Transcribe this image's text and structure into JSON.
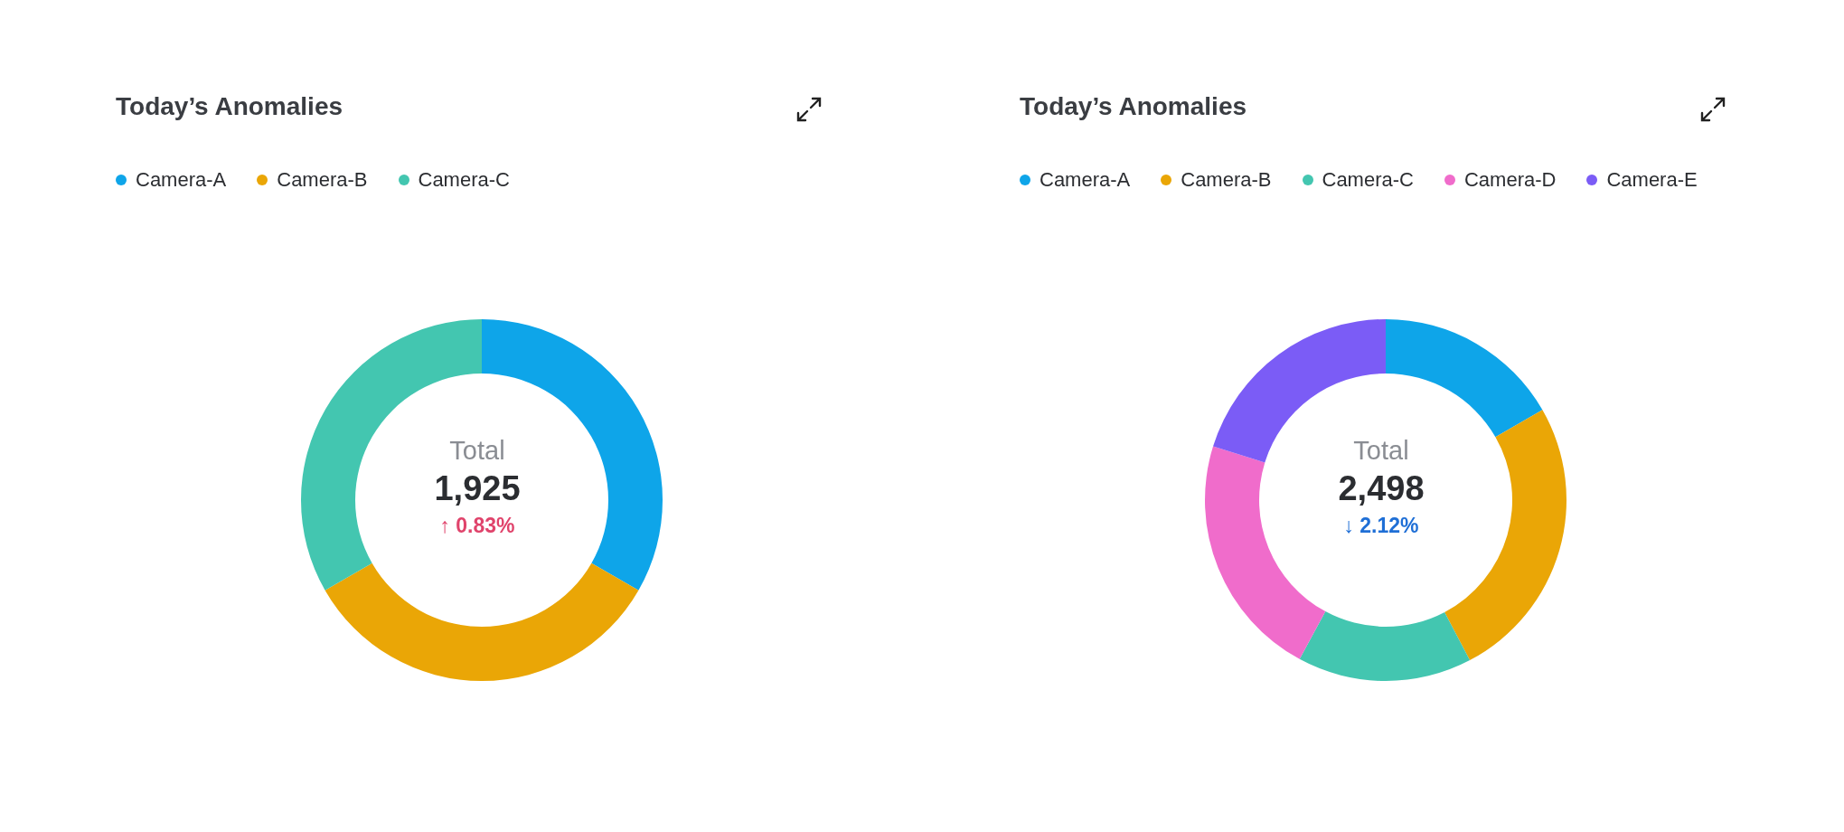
{
  "chart_data": [
    {
      "type": "donut",
      "title": "Today’s Anomalies",
      "categories": [
        "Camera-A",
        "Camera-B",
        "Camera-C"
      ],
      "values": [
        33.3,
        33.4,
        33.3
      ],
      "colors": [
        "#0ea5e9",
        "#eaa606",
        "#43c6b0"
      ],
      "legend": "top left",
      "annotations": [
        "Total",
        "1,925",
        "↑ 0.83%"
      ]
    },
    {
      "type": "donut",
      "title": "Today’s Anomalies",
      "categories": [
        "Camera-A",
        "Camera-B",
        "Camera-C",
        "Camera-D",
        "Camera-E"
      ],
      "values": [
        16.7,
        25.6,
        15.6,
        21.9,
        20.2
      ],
      "colors": [
        "#0ea5e9",
        "#eaa606",
        "#43c6b0",
        "#f06ccb",
        "#7b5cf6"
      ],
      "legend": "top left",
      "annotations": [
        "Total",
        "2,498",
        "↓ 2.12%"
      ]
    }
  ]
}
